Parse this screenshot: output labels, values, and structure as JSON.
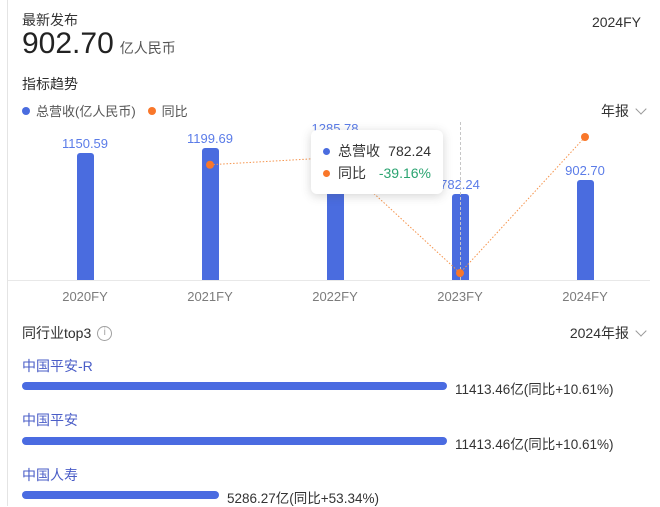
{
  "header": {
    "label": "最新发布",
    "value": "902.70",
    "unit": "亿人民币",
    "period": "2024FY"
  },
  "trend": {
    "title": "指标趋势",
    "legend": [
      {
        "label": "总营收(亿人民币)",
        "color": "#4a6cdf"
      },
      {
        "label": "同比",
        "color": "#f9772a"
      }
    ],
    "period_selector": "年报",
    "tooltip": {
      "rows": [
        {
          "label": "总营收",
          "value": "782.24",
          "dot_color": "#4a6cdf",
          "value_color": "#333333"
        },
        {
          "label": "同比",
          "value": "-39.16%",
          "dot_color": "#f9772a",
          "value_color": "#2ba471"
        }
      ]
    }
  },
  "chart_data": {
    "type": "combo_bar_line",
    "categories": [
      "2020FY",
      "2021FY",
      "2022FY",
      "2023FY",
      "2024FY"
    ],
    "series": [
      {
        "name": "总营收(亿人民币)",
        "type": "bar",
        "values": [
          1150.59,
          1199.69,
          1285.78,
          782.24,
          902.7
        ],
        "color": "#4a6cdf"
      },
      {
        "name": "同比(%)",
        "type": "line",
        "values": [
          null,
          4.27,
          7.18,
          -39.16,
          15.4
        ],
        "color": "#f9772a"
      }
    ],
    "highlighted_category": "2023FY",
    "bar_value_labels": [
      "1150.59",
      "1199.69",
      "1285.78",
      "782.24",
      "902.70"
    ],
    "legend_position": "top-left",
    "grid": false
  },
  "peers": {
    "title": "同行业top3",
    "period_selector": "2024年报",
    "max_value": 11413.46,
    "rows": [
      {
        "name": "中国平安-R",
        "value": 11413.46,
        "label": "11413.46亿(同比+10.61%)"
      },
      {
        "name": "中国平安",
        "value": 11413.46,
        "label": "11413.46亿(同比+10.61%)"
      },
      {
        "name": "中国人寿",
        "value": 5286.27,
        "label": "5286.27亿(同比+53.34%)"
      }
    ]
  }
}
